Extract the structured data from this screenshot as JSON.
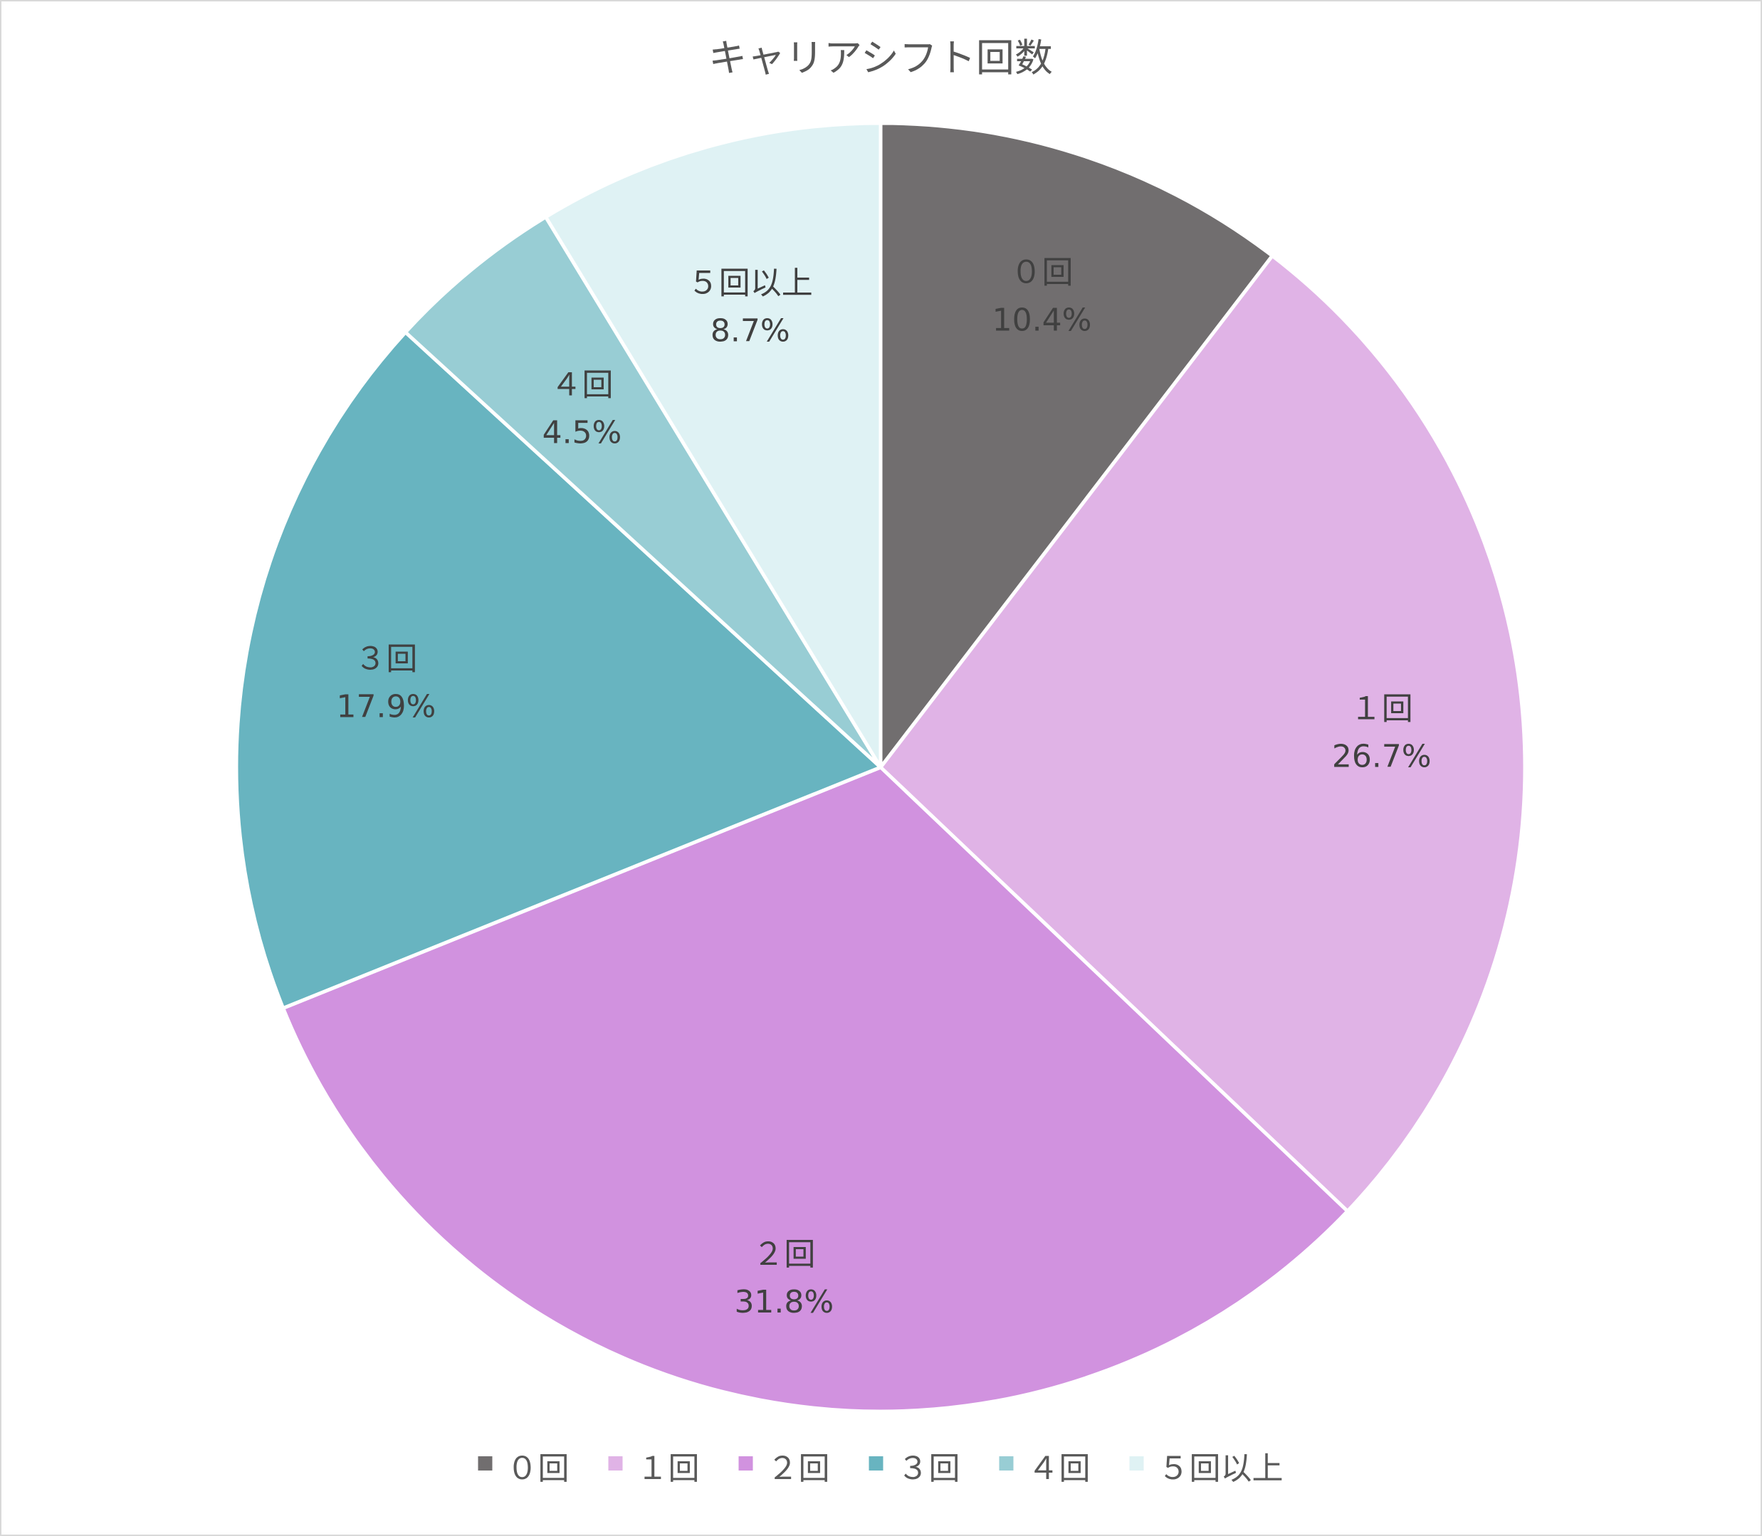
{
  "chart_data": {
    "type": "pie",
    "title": "キャリアシフト回数",
    "categories": [
      "０回",
      "１回",
      "２回",
      "３回",
      "４回",
      "５回以上"
    ],
    "values": [
      10.4,
      26.7,
      31.8,
      17.9,
      4.5,
      8.7
    ],
    "value_labels": [
      "10.4%",
      "26.7%",
      "31.8%",
      "17.9%",
      "4.5%",
      "8.7%"
    ],
    "colors": [
      "#716e6f",
      "#e0b3e6",
      "#d192df",
      "#68b4c0",
      "#98cdd4",
      "#dff2f4"
    ],
    "start_angle": "12 o'clock",
    "direction": "clockwise",
    "legend_position": "bottom"
  }
}
